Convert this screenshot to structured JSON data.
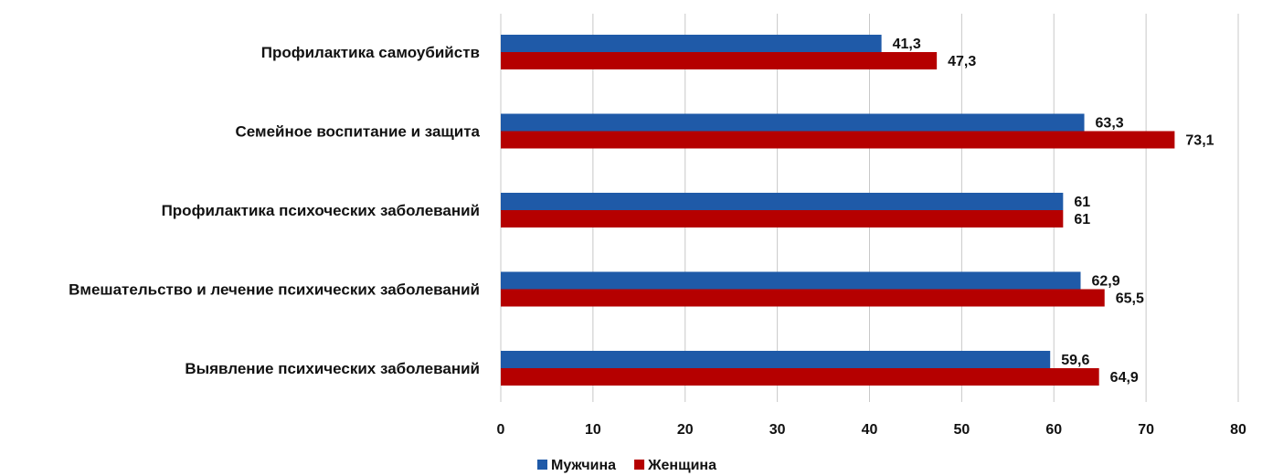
{
  "chart_data": {
    "type": "bar",
    "orientation": "horizontal",
    "categories": [
      "Профилактика самоубийств",
      "Семейное  воспитание и защита",
      "Профилактика психоческих заболеваний",
      "Вмешательство  и лечение  психических заболеваний",
      "Выявление  психических заболеваний"
    ],
    "series": [
      {
        "name": "Мужчина",
        "color": "#1f5aa8",
        "values": [
          41.3,
          63.3,
          61,
          62.9,
          59.6
        ],
        "labels": [
          "41,3",
          "63,3",
          "61",
          "62,9",
          "59,6"
        ]
      },
      {
        "name": "Женщина",
        "color": "#b50000",
        "values": [
          47.3,
          73.1,
          61,
          65.5,
          64.9
        ],
        "labels": [
          "47,3",
          "73,1",
          "61",
          "65,5",
          "64,9"
        ]
      }
    ],
    "xlim": [
      0,
      80
    ],
    "xticks": [
      0,
      10,
      20,
      30,
      40,
      50,
      60,
      70,
      80
    ],
    "xtick_labels": [
      "0",
      "10",
      "20",
      "30",
      "40",
      "50",
      "60",
      "70",
      "80"
    ],
    "grid": true,
    "legend_position": "bottom-center"
  }
}
